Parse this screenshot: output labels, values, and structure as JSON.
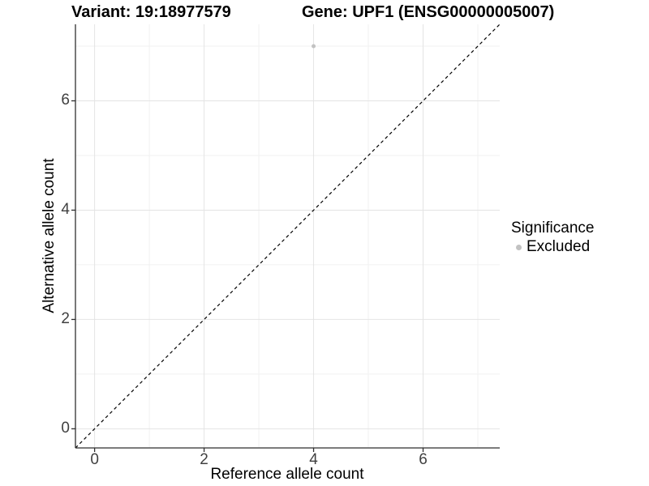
{
  "titles": {
    "variant": "Variant: 19:18977579",
    "gene": "Gene: UPF1 (ENSG00000005007)"
  },
  "chart_data": {
    "type": "scatter",
    "title_left": "Variant: 19:18977579",
    "title_right": "Gene: UPF1 (ENSG00000005007)",
    "xlabel": "Reference allele count",
    "ylabel": "Alternative allele count",
    "x_ticks": [
      0,
      2,
      4,
      6
    ],
    "y_ticks": [
      0,
      2,
      4,
      6
    ],
    "x_minor_ticks": [
      1,
      3,
      5,
      7
    ],
    "y_minor_ticks": [
      1,
      3,
      5,
      7
    ],
    "xlim": [
      -0.35,
      7.4
    ],
    "ylim": [
      -0.35,
      7.4
    ],
    "grid": true,
    "series": [
      {
        "name": "Excluded",
        "color": "#c2c2c2",
        "points": [
          {
            "x": 4,
            "y": 7
          }
        ]
      }
    ],
    "reference_line": {
      "type": "identity",
      "slope": 1,
      "intercept": 0,
      "style": "dashed",
      "color": "#000000"
    },
    "legend": {
      "title": "Significance",
      "position": "right",
      "entries": [
        {
          "label": "Excluded",
          "color": "#c2c2c2",
          "marker": "circle-icon"
        }
      ]
    }
  },
  "colors": {
    "background": "#ffffff",
    "grid_major": "#e4e4e4",
    "grid_minor": "#f1f1f1",
    "axis_line": "#2f2f2f",
    "tick_mark": "#2f2f2f",
    "tick_label": "#404040",
    "point": "#c2c2c2"
  }
}
